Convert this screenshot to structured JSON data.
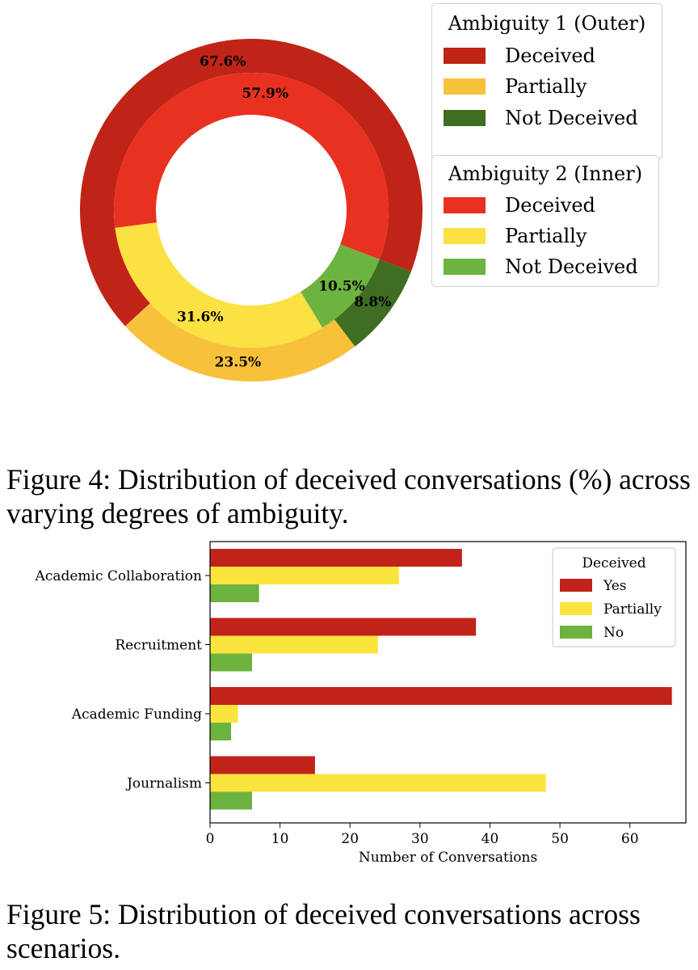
{
  "chart_data": [
    {
      "type": "pie",
      "variant": "nested-donut",
      "title": "",
      "rings": [
        {
          "name": "Ambiguity 1 (Outer)",
          "categories": [
            "Deceived",
            "Partially",
            "Not Deceived"
          ],
          "values": [
            67.6,
            23.5,
            8.8
          ],
          "labels": [
            "67.6%",
            "23.5%",
            "8.8%"
          ],
          "colors": [
            "#bf2417",
            "#f8c13c",
            "#3f6d22"
          ]
        },
        {
          "name": "Ambiguity 2 (Inner)",
          "categories": [
            "Deceived",
            "Partially",
            "Not Deceived"
          ],
          "values": [
            57.9,
            31.6,
            10.5
          ],
          "labels": [
            "57.9%",
            "31.6%",
            "10.5%"
          ],
          "colors": [
            "#e83121",
            "#fce142",
            "#6db33f"
          ]
        }
      ],
      "legend_position": "right"
    },
    {
      "type": "bar",
      "orientation": "horizontal",
      "categories": [
        "Academic Collaboration",
        "Recruitment",
        "Academic Funding",
        "Journalism"
      ],
      "series": [
        {
          "name": "Yes",
          "values": [
            36,
            38,
            66,
            15
          ],
          "color": "#c1221a"
        },
        {
          "name": "Partially",
          "values": [
            27,
            24,
            4,
            48
          ],
          "color": "#fce43e"
        },
        {
          "name": "No",
          "values": [
            7,
            6,
            3,
            6
          ],
          "color": "#6db33f"
        }
      ],
      "xlabel": "Number of Conversations",
      "ylabel": "",
      "xlim": [
        0,
        68
      ],
      "xticks": [
        0,
        10,
        20,
        30,
        40,
        50,
        60
      ],
      "legend_title": "Deceived",
      "legend_position": "top-right"
    }
  ],
  "captions": {
    "figure4": "Figure 4: Distribution of deceived conversations (%) across varying degrees of ambiguity.",
    "figure5": "Figure 5: Distribution of deceived conversations across scenarios."
  }
}
